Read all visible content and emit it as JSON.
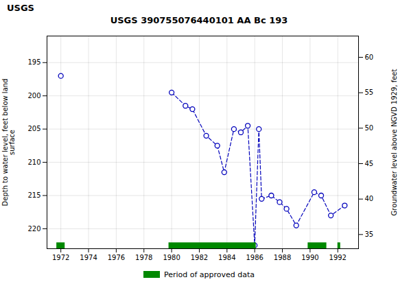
{
  "chart_data": {
    "type": "line",
    "title": "USGS 390755076440101 AA Bc 193",
    "annotations": [
      "USGS"
    ],
    "ylabel": "Depth to water level, feet below land\nsurface",
    "y2label": "Groundwater level above NGVD 1929, feet",
    "x": [
      1972.0,
      null,
      1980.0,
      1981.0,
      1981.5,
      1982.5,
      1983.3,
      1983.8,
      1984.5,
      1985.0,
      1985.5,
      1986.0,
      1986.3,
      1986.5,
      1987.2,
      1987.8,
      1988.3,
      1989.0,
      1990.3,
      1990.8,
      1991.5,
      1992.5
    ],
    "values": [
      197.0,
      null,
      199.5,
      201.5,
      202.0,
      206.0,
      207.5,
      211.5,
      205.0,
      205.5,
      204.5,
      222.5,
      205.0,
      215.5,
      215.0,
      216.0,
      217.0,
      219.5,
      214.5,
      215.0,
      218.0,
      216.5
    ],
    "color": "#0000bb",
    "marker": "circle",
    "line_style": "dashed",
    "xlim": [
      1971.0,
      1993.5
    ],
    "xticks": [
      1972,
      1974,
      1976,
      1978,
      1980,
      1982,
      1984,
      1986,
      1988,
      1990,
      1992
    ],
    "ylim": [
      223,
      191
    ],
    "yticks": [
      195,
      200,
      205,
      210,
      215,
      220
    ],
    "y2lim": [
      33,
      63
    ],
    "y2ticks": [
      35,
      40,
      45,
      50,
      55,
      60
    ],
    "grid": true,
    "legend": "bottom",
    "approved_periods": {
      "name": "Period of approved data",
      "color": "#008800",
      "ranges": [
        [
          1971.7,
          1972.3
        ],
        [
          1979.8,
          1986.1
        ],
        [
          1989.85,
          1991.2
        ],
        [
          1992.0,
          1992.2
        ]
      ]
    }
  }
}
